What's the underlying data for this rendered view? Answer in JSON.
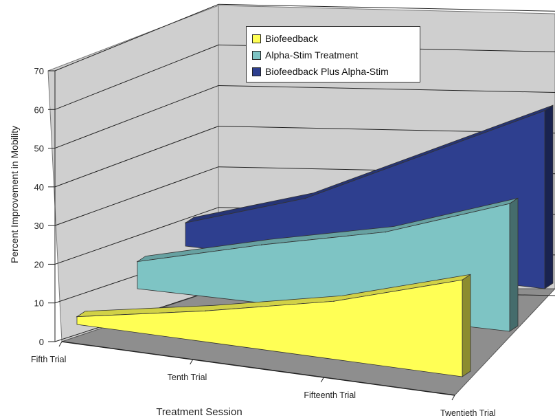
{
  "chart_data": {
    "type": "area",
    "title": "",
    "xlabel": "Treatment Session",
    "ylabel": "Percent Improvement in Mobility",
    "categories": [
      "Fifth Trial",
      "Tenth Trial",
      "Fifteenth Trial",
      "Twentieth Trial"
    ],
    "ylim": [
      0,
      70
    ],
    "yticks": [
      0,
      10,
      20,
      30,
      40,
      50,
      60,
      70
    ],
    "grid": true,
    "legend_position": "top-right",
    "series": [
      {
        "name": "Biofeedback",
        "color": "#ffff55",
        "values": [
          2,
          8,
          15,
          25
        ]
      },
      {
        "name": "Alpha-Stim Treatment",
        "color": "#7ec4c4",
        "values": [
          7,
          15,
          22,
          33
        ]
      },
      {
        "name": "Biofeedback Plus Alpha-Stim",
        "color": "#2e3f8f",
        "values": [
          6,
          16,
          31,
          46
        ]
      }
    ]
  }
}
